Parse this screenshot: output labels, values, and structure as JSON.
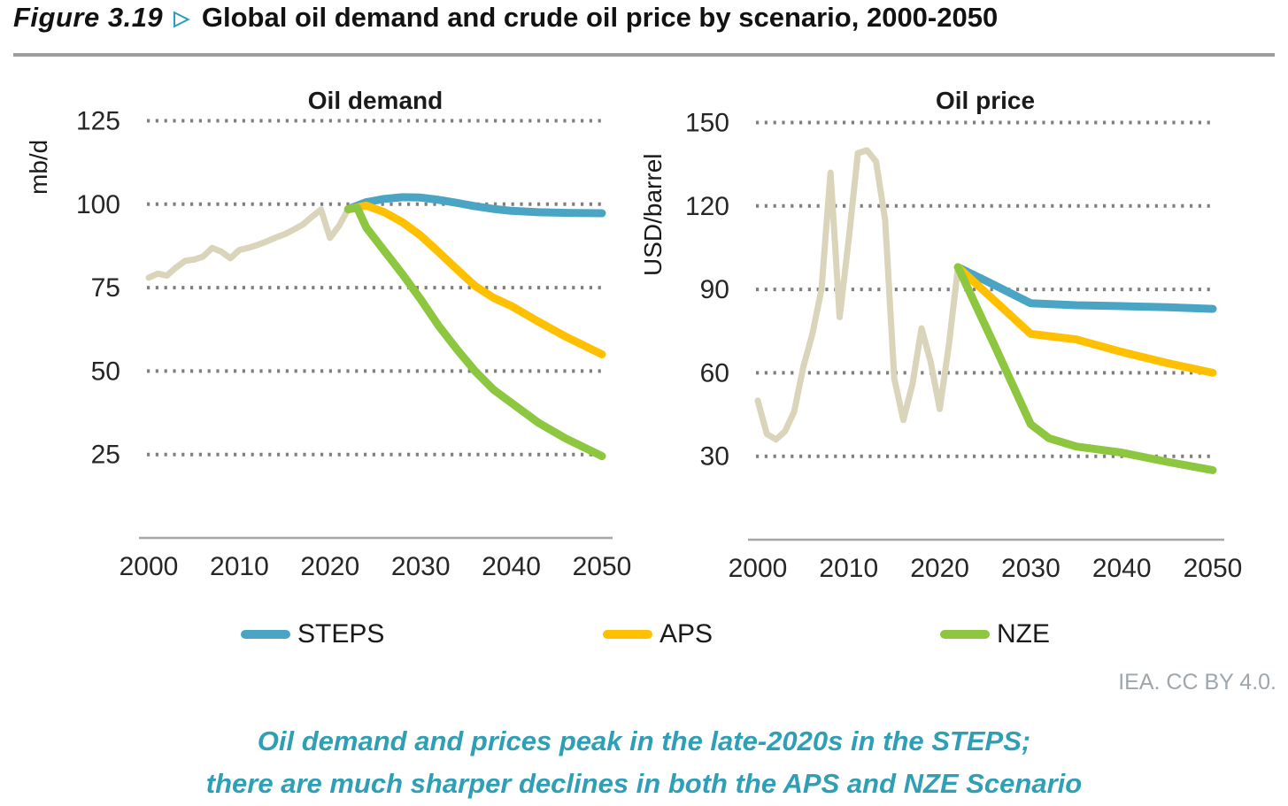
{
  "header": {
    "figure_label": "Figure 3.19",
    "arrow": "▷",
    "figure_title": "Global oil demand and crude oil price by scenario, 2000-2050"
  },
  "attribution": "IEA. CC BY 4.0.",
  "caption": {
    "line1": "Oil demand and prices peak in the late-2020s in the STEPS;",
    "line2": "there are much sharper declines in both the APS and NZE Scenario"
  },
  "colors": {
    "accent_teal": "#2e9fb4",
    "history": "#dad4bb",
    "steps": "#4aa5c4",
    "aps": "#ffc000",
    "nze": "#8dc63f",
    "grid": "#7f7f7f",
    "axis": "#a6a6a6",
    "tick_text": "#262626"
  },
  "legend": {
    "items": [
      {
        "label": "STEPS",
        "color": "#4aa5c4"
      },
      {
        "label": "APS",
        "color": "#ffc000"
      },
      {
        "label": "NZE",
        "color": "#8dc63f"
      }
    ]
  },
  "chart_data": [
    {
      "type": "line",
      "title": "Oil demand",
      "ylabel": "mb/d",
      "xlabel": "",
      "xlim": [
        2000,
        2050
      ],
      "ylim": [
        0,
        135
      ],
      "yticks": [
        125,
        100,
        75,
        50,
        25
      ],
      "xticks": [
        2000,
        2010,
        2020,
        2030,
        2040,
        2050
      ],
      "grid": "dotted-horizontal",
      "legend_position": "below-figure",
      "series": [
        {
          "name": "Historical",
          "color": "#dad4bb",
          "width": 7,
          "points": [
            [
              2000,
              78
            ],
            [
              2001,
              79.2
            ],
            [
              2002,
              78.6
            ],
            [
              2003,
              81
            ],
            [
              2004,
              83
            ],
            [
              2005,
              83.4
            ],
            [
              2006,
              84.3
            ],
            [
              2007,
              86.9
            ],
            [
              2008,
              85.8
            ],
            [
              2009,
              83.8
            ],
            [
              2010,
              86.3
            ],
            [
              2011,
              86.9
            ],
            [
              2012,
              87.8
            ],
            [
              2013,
              88.8
            ],
            [
              2014,
              90
            ],
            [
              2015,
              91
            ],
            [
              2016,
              92.4
            ],
            [
              2017,
              93.9
            ],
            [
              2018,
              96.2
            ],
            [
              2019,
              98.4
            ],
            [
              2020,
              89.9
            ],
            [
              2021,
              93.5
            ],
            [
              2022,
              98.5
            ]
          ]
        },
        {
          "name": "STEPS",
          "color": "#4aa5c4",
          "width": 9,
          "points": [
            [
              2022,
              98.5
            ],
            [
              2024,
              100.6
            ],
            [
              2026,
              101.6
            ],
            [
              2028,
              102.1
            ],
            [
              2030,
              102
            ],
            [
              2032,
              101.3
            ],
            [
              2034,
              100.4
            ],
            [
              2036,
              99.4
            ],
            [
              2038,
              98.6
            ],
            [
              2040,
              98
            ],
            [
              2043,
              97.6
            ],
            [
              2046,
              97.4
            ],
            [
              2050,
              97.3
            ]
          ]
        },
        {
          "name": "APS",
          "color": "#ffc000",
          "width": 9,
          "points": [
            [
              2022,
              98.5
            ],
            [
              2024,
              99.6
            ],
            [
              2026,
              97.6
            ],
            [
              2028,
              94.6
            ],
            [
              2030,
              90.6
            ],
            [
              2032,
              85.6
            ],
            [
              2034,
              80.5
            ],
            [
              2036,
              75.5
            ],
            [
              2038,
              72
            ],
            [
              2040,
              69.5
            ],
            [
              2043,
              64.8
            ],
            [
              2046,
              60.3
            ],
            [
              2050,
              55
            ]
          ]
        },
        {
          "name": "NZE",
          "color": "#8dc63f",
          "width": 9,
          "points": [
            [
              2022,
              98.5
            ],
            [
              2023,
              98.9
            ],
            [
              2024,
              93
            ],
            [
              2026,
              86
            ],
            [
              2028,
              79
            ],
            [
              2030,
              71.5
            ],
            [
              2032,
              63.5
            ],
            [
              2034,
              56.5
            ],
            [
              2036,
              50
            ],
            [
              2038,
              44.5
            ],
            [
              2040,
              40.5
            ],
            [
              2043,
              34.5
            ],
            [
              2046,
              29.8
            ],
            [
              2050,
              24.5
            ]
          ]
        }
      ]
    },
    {
      "type": "line",
      "title": "Oil price",
      "ylabel": "USD/barrel",
      "xlabel": "",
      "xlim": [
        2000,
        2050
      ],
      "ylim": [
        0,
        160
      ],
      "yticks": [
        150,
        120,
        90,
        60,
        30
      ],
      "xticks": [
        2000,
        2010,
        2020,
        2030,
        2040,
        2050
      ],
      "grid": "dotted-horizontal",
      "legend_position": "below-figure",
      "series": [
        {
          "name": "Historical",
          "color": "#dad4bb",
          "width": 7,
          "points": [
            [
              2000,
              50
            ],
            [
              2001,
              38
            ],
            [
              2002,
              36
            ],
            [
              2003,
              39
            ],
            [
              2004,
              46
            ],
            [
              2005,
              62
            ],
            [
              2006,
              74
            ],
            [
              2007,
              90
            ],
            [
              2008,
              132
            ],
            [
              2009,
              80
            ],
            [
              2010,
              108
            ],
            [
              2011,
              139
            ],
            [
              2012,
              140
            ],
            [
              2013,
              136
            ],
            [
              2014,
              115
            ],
            [
              2015,
              58
            ],
            [
              2016,
              43
            ],
            [
              2017,
              56
            ],
            [
              2018,
              76
            ],
            [
              2019,
              64
            ],
            [
              2020,
              47
            ],
            [
              2021,
              70
            ],
            [
              2022,
              98
            ]
          ]
        },
        {
          "name": "STEPS",
          "color": "#4aa5c4",
          "width": 9,
          "points": [
            [
              2022,
              98
            ],
            [
              2025,
              93.2
            ],
            [
              2030,
              85
            ],
            [
              2035,
              84.3
            ],
            [
              2040,
              84
            ],
            [
              2045,
              83.6
            ],
            [
              2050,
              83
            ]
          ]
        },
        {
          "name": "APS",
          "color": "#ffc000",
          "width": 9,
          "points": [
            [
              2022,
              98
            ],
            [
              2025,
              89
            ],
            [
              2030,
              74
            ],
            [
              2035,
              72
            ],
            [
              2040,
              67.5
            ],
            [
              2045,
              63.5
            ],
            [
              2050,
              60
            ]
          ]
        },
        {
          "name": "NZE",
          "color": "#8dc63f",
          "width": 9,
          "points": [
            [
              2022,
              98
            ],
            [
              2026,
              70
            ],
            [
              2030,
              41.5
            ],
            [
              2032,
              36.5
            ],
            [
              2035,
              33.5
            ],
            [
              2040,
              31.3
            ],
            [
              2045,
              28
            ],
            [
              2050,
              25
            ]
          ]
        }
      ]
    }
  ]
}
